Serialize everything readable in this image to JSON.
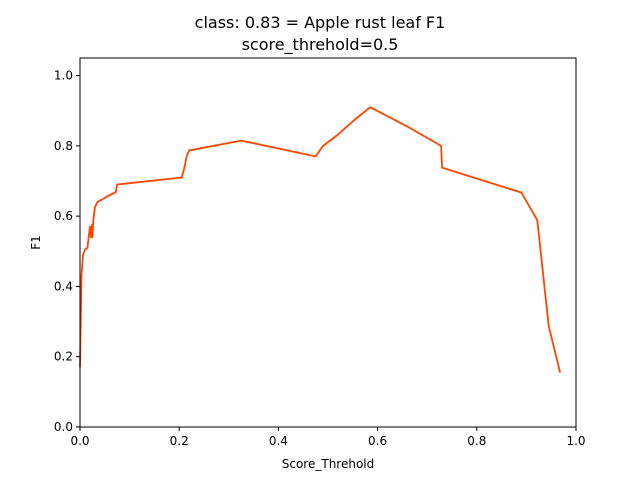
{
  "chart_data": {
    "type": "line",
    "title_line1": "class: 0.83 = Apple rust leaf F1",
    "title_line2": "score_threhold=0.5",
    "xlabel": "Score_Threhold",
    "ylabel": "F1",
    "xlim": [
      0.0,
      1.0
    ],
    "ylim": [
      0.0,
      1.05
    ],
    "x_ticks": [
      0.0,
      0.2,
      0.4,
      0.6,
      0.8,
      1.0
    ],
    "x_tick_labels": [
      "0.0",
      "0.2",
      "0.4",
      "0.6",
      "0.8",
      "1.0"
    ],
    "y_ticks": [
      0.0,
      0.2,
      0.4,
      0.6,
      0.8,
      1.0
    ],
    "y_tick_labels": [
      "0.0",
      "0.2",
      "0.4",
      "0.6",
      "0.8",
      "1.0"
    ],
    "grid": false,
    "series": [
      {
        "color": "#ff4500",
        "x": [
          0.0,
          0.003,
          0.006,
          0.01,
          0.015,
          0.02,
          0.022,
          0.024,
          0.025,
          0.027,
          0.03,
          0.035,
          0.045,
          0.06,
          0.072,
          0.075,
          0.205,
          0.21,
          0.215,
          0.22,
          0.325,
          0.475,
          0.49,
          0.52,
          0.55,
          0.585,
          0.66,
          0.728,
          0.73,
          0.89,
          0.922,
          0.945,
          0.968
        ],
        "y": [
          0.17,
          0.43,
          0.49,
          0.505,
          0.51,
          0.57,
          0.54,
          0.575,
          0.54,
          0.59,
          0.625,
          0.64,
          0.648,
          0.66,
          0.668,
          0.69,
          0.71,
          0.735,
          0.77,
          0.787,
          0.815,
          0.77,
          0.8,
          0.832,
          0.87,
          0.91,
          0.855,
          0.8,
          0.738,
          0.667,
          0.588,
          0.287,
          0.155
        ]
      }
    ]
  }
}
